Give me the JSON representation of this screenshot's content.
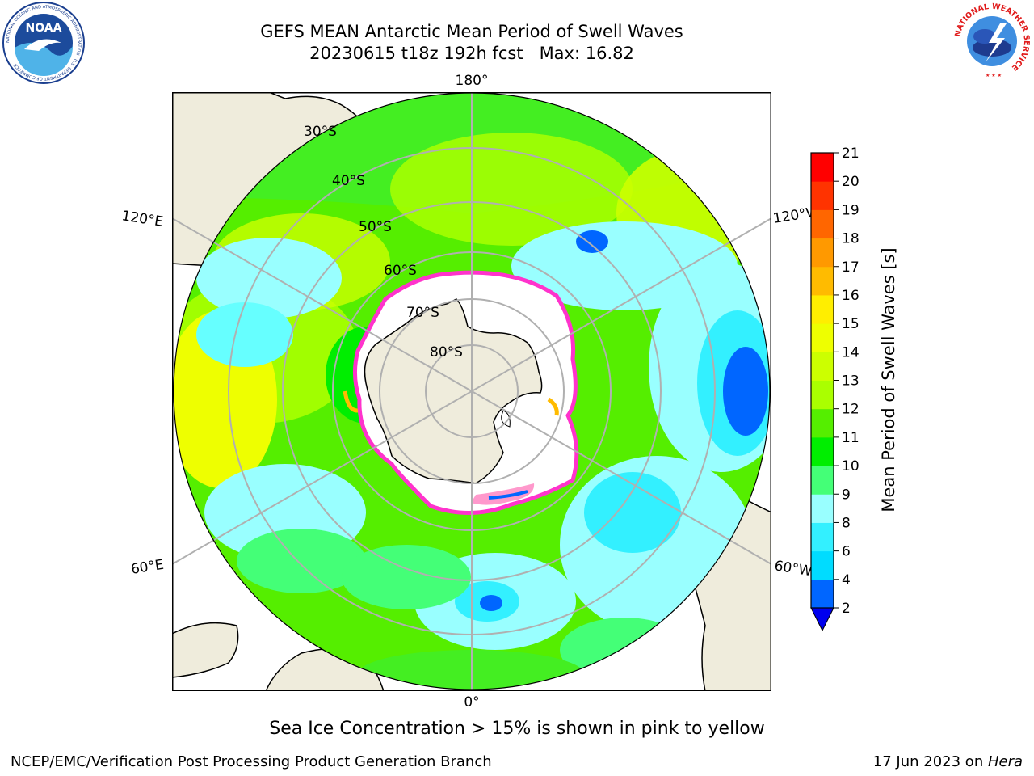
{
  "title": {
    "line1": "GEFS MEAN Antarctic Mean Period of Swell Waves",
    "line2": "20230615 t18z 192h fcst   Max: 16.82"
  },
  "logos": {
    "left": "NOAA",
    "left_ring": "NATIONAL OCEANIC AND ATMOSPHERIC ADMINISTRATION · U.S. DEPARTMENT OF COMMERCE",
    "right_ring": "NATIONAL WEATHER SERVICE"
  },
  "map": {
    "projection": "south-polar-stereographic",
    "longitude_labels": {
      "top": "180°",
      "bottom": "0°",
      "upper_left": "120°E",
      "upper_right": "120°W",
      "lower_left": "60°E",
      "lower_right": "60°W"
    },
    "latitude_labels": [
      "30°S",
      "40°S",
      "50°S",
      "60°S",
      "70°S",
      "80°S"
    ]
  },
  "colorbar": {
    "label": "Mean Period of Swell Waves [s]",
    "ticks": [
      "2",
      "4",
      "6",
      "8",
      "9",
      "10",
      "11",
      "12",
      "13",
      "14",
      "15",
      "16",
      "17",
      "18",
      "19",
      "20",
      "21"
    ],
    "colors": [
      "#0066ff",
      "#00dcff",
      "#33f0ff",
      "#99ffff",
      "#44ff77",
      "#00ee00",
      "#55ee00",
      "#aaff00",
      "#ccff00",
      "#eeff00",
      "#ffee00",
      "#ffbb00",
      "#ff9900",
      "#ff6600",
      "#ff3300",
      "#ff0000"
    ],
    "under_color": "#0000ee",
    "extend": "min"
  },
  "footnote": "Sea Ice Concentration > 15% is shown in pink to yellow",
  "footer": {
    "left": "NCEP/EMC/Verification Post Processing Product Generation Branch",
    "right_date": "17 Jun 2023 on ",
    "right_host": "Hera"
  },
  "colors": {
    "land": "#efecdc",
    "ice": "#ffffff",
    "ice_edge": "#ff33cc",
    "gridline": "#b0b0b0"
  }
}
